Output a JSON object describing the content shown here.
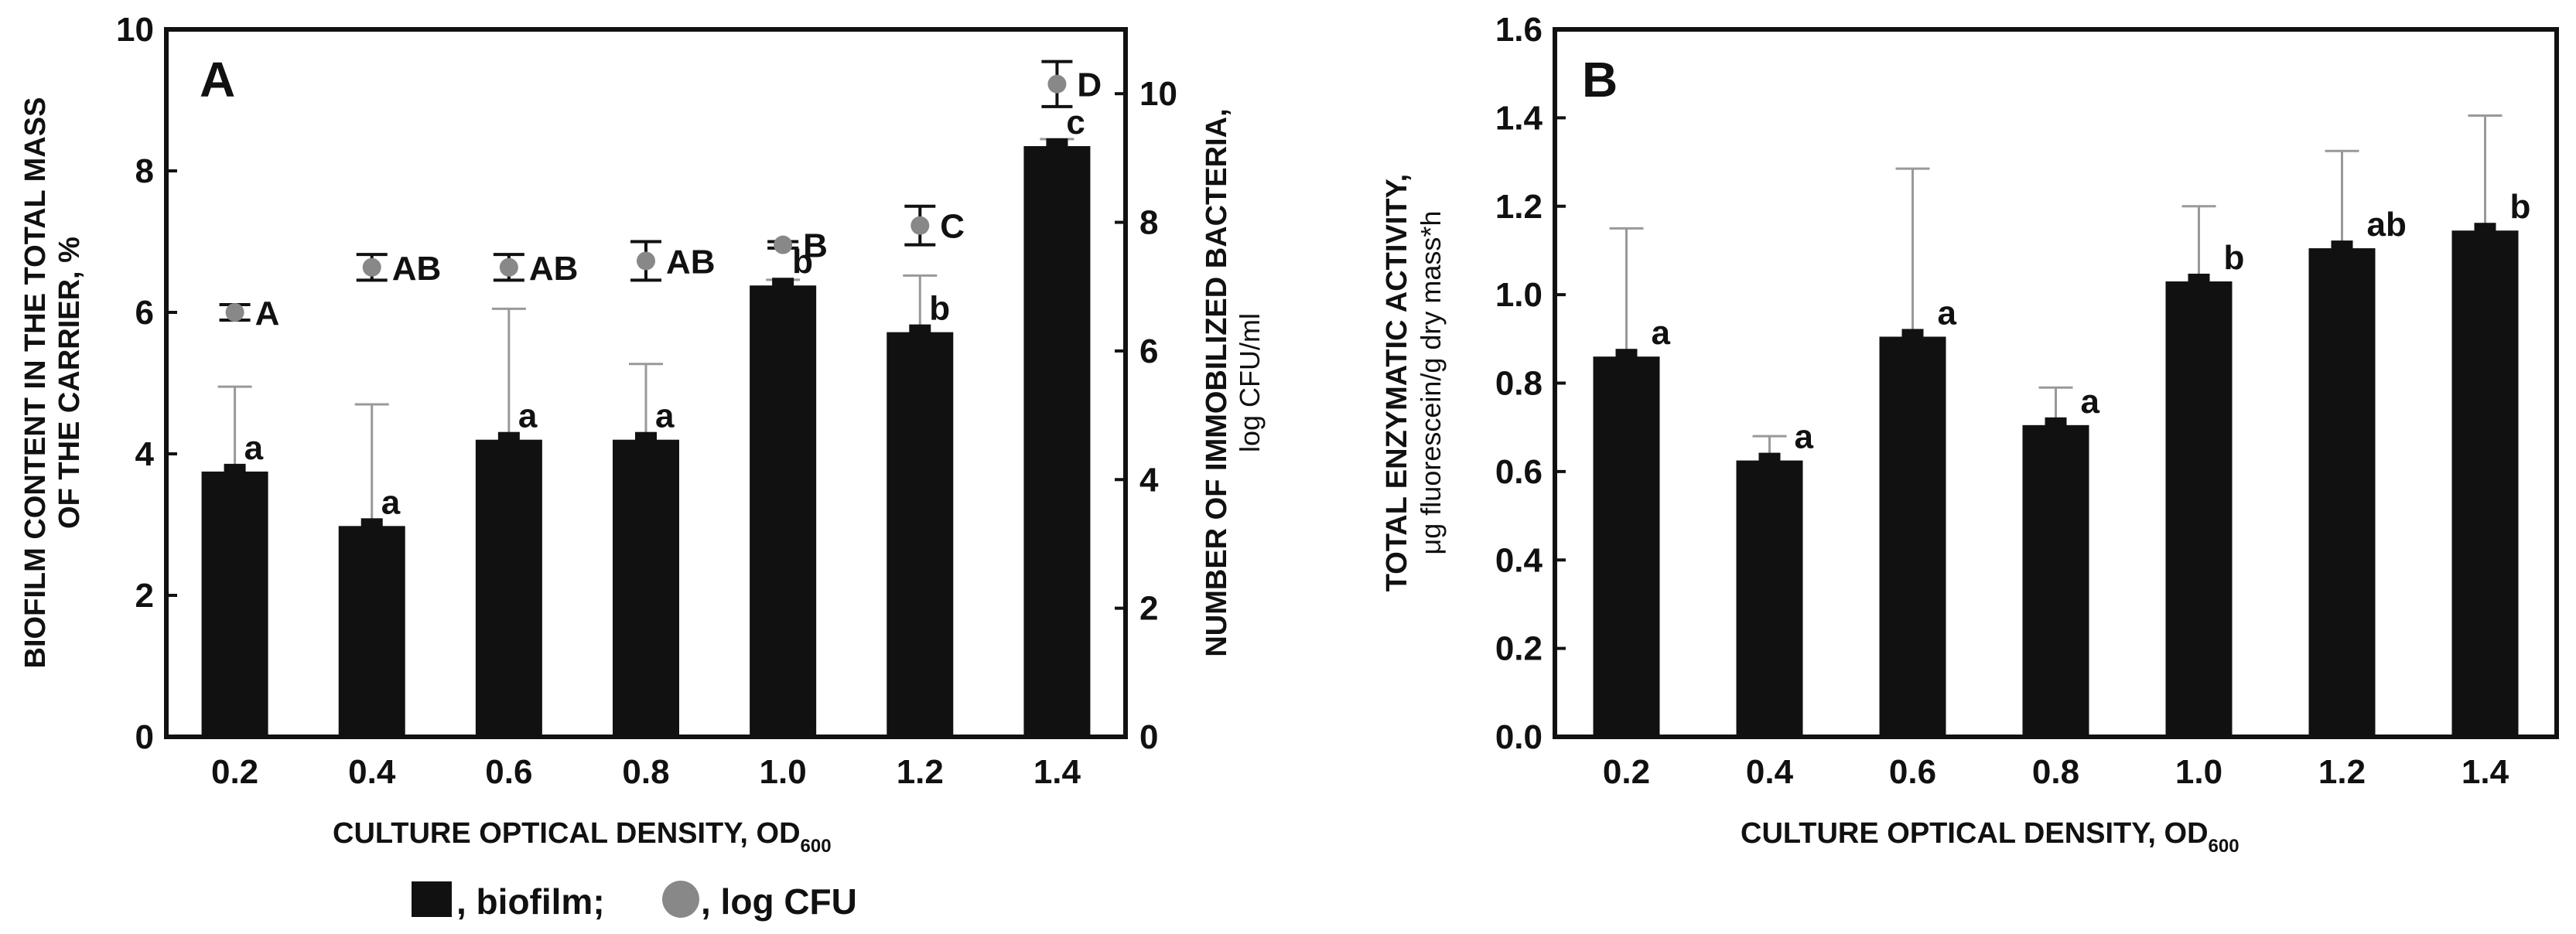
{
  "colors": {
    "bar": "#111111",
    "dot": "#888888",
    "errA": "#999999",
    "axis": "#111111"
  },
  "legend": {
    "bar_label": ", biofilm;",
    "dot_label": ", log CFU"
  },
  "chart_data": [
    {
      "type": "bar",
      "panel_label": "A",
      "categories": [
        "0.2",
        "0.4",
        "0.6",
        "0.8",
        "1.0",
        "1.2",
        "1.4"
      ],
      "series": [
        {
          "name": "biofilm",
          "axis": "left",
          "values": [
            3.75,
            2.98,
            4.2,
            4.2,
            6.38,
            5.72,
            8.35
          ],
          "errors": [
            1.2,
            1.72,
            1.85,
            1.07,
            0.08,
            0.8,
            0.1
          ],
          "labels": [
            "a",
            "a",
            "a",
            "a",
            "b",
            "b",
            "c"
          ]
        },
        {
          "name": "log CFU",
          "axis": "right",
          "marker": "circle",
          "values": [
            6.6,
            7.3,
            7.3,
            7.4,
            7.65,
            7.95,
            10.15
          ],
          "errors": [
            0.12,
            0.2,
            0.2,
            0.3,
            0.05,
            0.3,
            0.35
          ],
          "labels": [
            "A",
            "AB",
            "AB",
            "AB",
            "B",
            "C",
            "D"
          ]
        }
      ],
      "xlabel": "CULTURE OPTICAL DENSITY, OD",
      "xlabel_sub": "600",
      "ylabel_lines": [
        "BIOFILM CONTENT IN THE TOTAL MASS",
        "OF THE CARRIER, %"
      ],
      "ylabel_right_lines": [
        "NUMBER OF IMMOBILIZED BACTERIA,",
        "log CFU/ml"
      ],
      "ylim": [
        0,
        10
      ],
      "yticks": [
        "0",
        "2",
        "4",
        "6",
        "8",
        "10"
      ],
      "y2lim": [
        0,
        11
      ],
      "y2ticks": [
        "0",
        "2",
        "4",
        "6",
        "8",
        "10"
      ],
      "grid": false,
      "legend_position": "bottom"
    },
    {
      "type": "bar",
      "panel_label": "B",
      "categories": [
        "0.2",
        "0.4",
        "0.6",
        "0.8",
        "1.0",
        "1.2",
        "1.4"
      ],
      "series": [
        {
          "name": "total enzymatic activity",
          "values": [
            0.86,
            0.625,
            0.905,
            0.705,
            1.03,
            1.105,
            1.145
          ],
          "errors": [
            0.29,
            0.055,
            0.38,
            0.085,
            0.17,
            0.22,
            0.26
          ],
          "labels": [
            "a",
            "a",
            "a",
            "a",
            "b",
            "ab",
            "b"
          ]
        }
      ],
      "xlabel": "CULTURE OPTICAL DENSITY, OD",
      "xlabel_sub": "600",
      "ylabel_lines": [
        "TOTAL ENZYMATIC ACTIVITY,",
        "μg fluorescein/g dry mass*h"
      ],
      "ylim": [
        0,
        1.6
      ],
      "yticks": [
        "0.0",
        "0.2",
        "0.4",
        "0.6",
        "0.8",
        "1.0",
        "1.2",
        "1.4",
        "1.6"
      ],
      "grid": false
    }
  ]
}
